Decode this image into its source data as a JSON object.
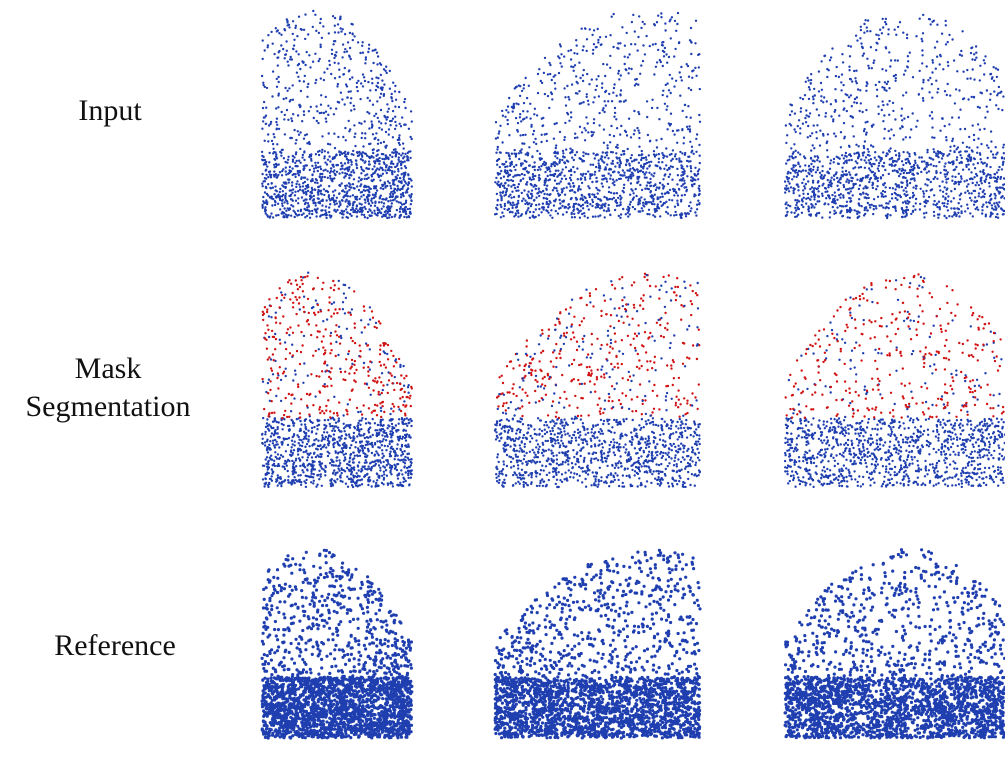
{
  "rows": [
    {
      "label": [
        "Input"
      ]
    },
    {
      "label": [
        "Mask",
        "Segmentation"
      ]
    },
    {
      "label": [
        "Reference"
      ]
    }
  ]
}
